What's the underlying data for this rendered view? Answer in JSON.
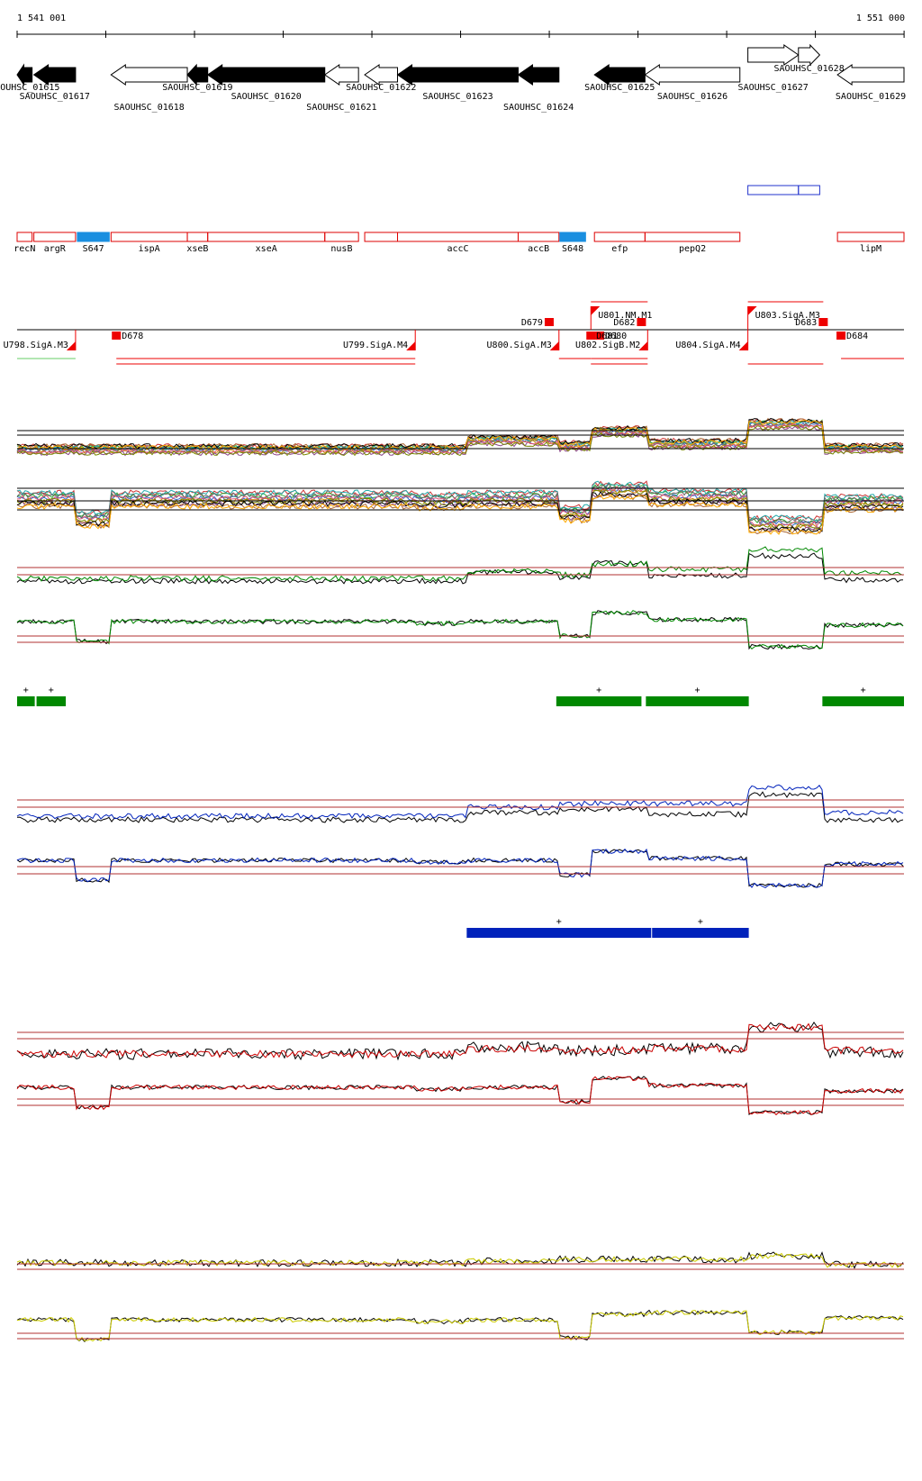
{
  "ruler": {
    "start_label": "1 541 001",
    "end_label": "1 551 000",
    "start": 1541001,
    "end": 1551000
  },
  "genes": [
    {
      "name": "SAOUHSC_01615",
      "start": 1541001,
      "end": 1541170,
      "strand": "-",
      "fill": "black"
    },
    {
      "name": "SAOUHSC_01617",
      "start": 1541190,
      "end": 1541660,
      "strand": "-",
      "fill": "black"
    },
    {
      "name": "SAOUHSC_01618",
      "start": 1542060,
      "end": 1542920,
      "strand": "-",
      "fill": "white"
    },
    {
      "name": "SAOUHSC_01619",
      "start": 1542920,
      "end": 1543150,
      "strand": "-",
      "fill": "black"
    },
    {
      "name": "SAOUHSC_01620",
      "start": 1543150,
      "end": 1544470,
      "strand": "-",
      "fill": "black"
    },
    {
      "name": "SAOUHSC_01621",
      "start": 1544470,
      "end": 1544850,
      "strand": "-",
      "fill": "white"
    },
    {
      "name": "SAOUHSC_01622",
      "start": 1544920,
      "end": 1545290,
      "strand": "-",
      "fill": "white"
    },
    {
      "name": "SAOUHSC_01623",
      "start": 1545290,
      "end": 1546650,
      "strand": "-",
      "fill": "black"
    },
    {
      "name": "SAOUHSC_01624",
      "start": 1546650,
      "end": 1547110,
      "strand": "-",
      "fill": "black"
    },
    {
      "name": "SAOUHSC_01625",
      "start": 1547510,
      "end": 1548080,
      "strand": "-",
      "fill": "black"
    },
    {
      "name": "SAOUHSC_01626",
      "start": 1548080,
      "end": 1549150,
      "strand": "-",
      "fill": "white"
    },
    {
      "name": "SAOUHSC_01627",
      "start": 1549240,
      "end": 1549810,
      "strand": "+",
      "fill": "white"
    },
    {
      "name": "SAOUHSC_01628",
      "start": 1549810,
      "end": 1550050,
      "strand": "+",
      "fill": "white"
    },
    {
      "name": "SAOUHSC_01629",
      "start": 1550250,
      "end": 1551000,
      "strand": "-",
      "fill": "white"
    }
  ],
  "gene_labels_above": [
    "SAOUHSC_01615",
    "SAOUHSC_01619",
    "SAOUHSC_01622",
    "SAOUHSC_01625",
    "SAOUHSC_01627"
  ],
  "gene_labels_below": [
    "SAOUHSC_01617",
    "SAOUHSC_01620",
    "SAOUHSC_01623",
    "SAOUHSC_01626",
    "SAOUHSC_01629"
  ],
  "gene_labels_third": [
    "SAOUHSC_01618",
    "SAOUHSC_01621",
    "SAOUHSC_01624"
  ],
  "gene_label_top": [
    "SAOUHSC_01628"
  ],
  "blue_boxes": [
    {
      "start": 1549240,
      "end": 1549810
    },
    {
      "start": 1549810,
      "end": 1550050
    }
  ],
  "features": [
    {
      "name": "recN",
      "start": 1541001,
      "end": 1541170,
      "kind": "cds"
    },
    {
      "name": "argR",
      "start": 1541190,
      "end": 1541660,
      "kind": "cds"
    },
    {
      "name": "S647",
      "start": 1541680,
      "end": 1542040,
      "kind": "srna"
    },
    {
      "name": "ispA",
      "start": 1542060,
      "end": 1542920,
      "kind": "cds"
    },
    {
      "name": "xseB",
      "start": 1542920,
      "end": 1543150,
      "kind": "cds"
    },
    {
      "name": "xseA",
      "start": 1543150,
      "end": 1544470,
      "kind": "cds"
    },
    {
      "name": "nusB",
      "start": 1544470,
      "end": 1544850,
      "kind": "cds"
    },
    {
      "name": "",
      "start": 1544920,
      "end": 1545290,
      "kind": "cds"
    },
    {
      "name": "accC",
      "start": 1545290,
      "end": 1546650,
      "kind": "cds"
    },
    {
      "name": "accB",
      "start": 1546650,
      "end": 1547110,
      "kind": "cds"
    },
    {
      "name": "S648",
      "start": 1547120,
      "end": 1547410,
      "kind": "srna"
    },
    {
      "name": "efp",
      "start": 1547510,
      "end": 1548080,
      "kind": "cds"
    },
    {
      "name": "pepQ2",
      "start": 1548080,
      "end": 1549150,
      "kind": "cds"
    },
    {
      "name": "lipM",
      "start": 1550250,
      "end": 1551000,
      "kind": "cds"
    }
  ],
  "promoters": [
    {
      "label": "U798.SigA.M3",
      "pos": 1541660,
      "dir": "left"
    },
    {
      "label": "U799.SigA.M4",
      "pos": 1545490,
      "dir": "left"
    },
    {
      "label": "U800.SigA.M3",
      "pos": 1547110,
      "dir": "left"
    },
    {
      "label": "U801.NM.M1",
      "pos": 1547470,
      "dir": "right"
    },
    {
      "label": "U802.SigB.M2",
      "pos": 1548110,
      "dir": "left"
    },
    {
      "label": "U803.SigA.M3",
      "pos": 1549240,
      "dir": "right"
    },
    {
      "label": "U804.SigA.M4",
      "pos": 1549240,
      "dir": "left"
    }
  ],
  "terminators": [
    {
      "label": "D678",
      "pos": 1542120
    },
    {
      "label": "D679",
      "pos": 1547000
    },
    {
      "label": "D680",
      "pos": 1547570
    },
    {
      "label": "D681",
      "pos": 1547470
    },
    {
      "label": "D682",
      "pos": 1548040
    },
    {
      "label": "D683",
      "pos": 1550090
    },
    {
      "label": "D684",
      "pos": 1550290
    }
  ],
  "segment_boxes": {
    "green": [
      {
        "start": 1541001,
        "end": 1541200,
        "mark": "+"
      },
      {
        "start": 1541220,
        "end": 1541550,
        "mark": "+"
      },
      {
        "start": 1547080,
        "end": 1548040,
        "mark": "+"
      },
      {
        "start": 1548090,
        "end": 1549250,
        "mark": "+"
      },
      {
        "start": 1550080,
        "end": 1551000,
        "mark": "+"
      }
    ],
    "blue": [
      {
        "start": 1546070,
        "end": 1548150,
        "mark": "+"
      },
      {
        "start": 1548160,
        "end": 1549250,
        "mark": "+"
      }
    ]
  },
  "colors": {
    "gene_black": "#000000",
    "feature_red": "#dd0000",
    "srna_blue": "#1a8fe0",
    "promoter_red": "#ee0000",
    "green_track": "#008800",
    "blue_track": "#0022bb",
    "red_track": "#cc0000",
    "yellow_track": "#cccc00",
    "threshold_line": "#b03030"
  }
}
